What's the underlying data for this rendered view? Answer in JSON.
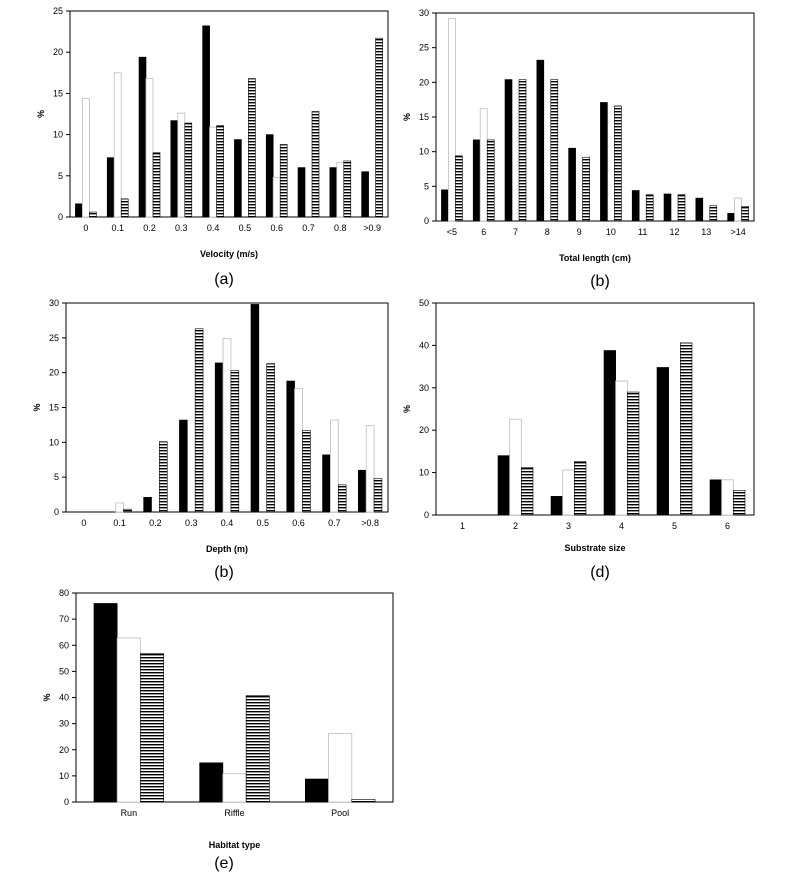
{
  "chart_data": [
    {
      "id": "a",
      "type": "bar",
      "panel_label": "(a)",
      "xlabel": "Velocity (m/s)",
      "ylabel": "%",
      "ylim": [
        0,
        25
      ],
      "yticks": [
        0,
        5,
        10,
        15,
        20,
        25
      ],
      "categories": [
        "0",
        "0.1",
        "0.2",
        "0.3",
        "0.4",
        "0.5",
        "0.6",
        "0.7",
        "0.8",
        ">0.9"
      ],
      "series": [
        {
          "name": "solid",
          "values": [
            1.6,
            7.2,
            19.4,
            11.7,
            23.2,
            9.4,
            10.0,
            6.0,
            6.0,
            5.5
          ]
        },
        {
          "name": "open",
          "values": [
            14.4,
            17.5,
            16.8,
            12.6,
            10.9,
            0.0,
            4.8,
            0.0,
            6.6,
            0.0
          ]
        },
        {
          "name": "striped",
          "values": [
            0.6,
            2.2,
            7.8,
            11.4,
            11.1,
            16.8,
            8.8,
            12.8,
            6.8,
            21.7
          ]
        }
      ]
    },
    {
      "id": "b1",
      "type": "bar",
      "panel_label": "(b)",
      "xlabel": "Total length (cm)",
      "ylabel": "%",
      "ylim": [
        0,
        30
      ],
      "yticks": [
        0,
        5,
        10,
        15,
        20,
        25,
        30
      ],
      "categories": [
        "<5",
        "6",
        "7",
        "8",
        "9",
        "10",
        "11",
        "12",
        "13",
        ">14"
      ],
      "series": [
        {
          "name": "solid",
          "values": [
            4.5,
            11.7,
            20.4,
            23.2,
            10.5,
            17.1,
            4.4,
            3.9,
            3.3,
            1.1
          ]
        },
        {
          "name": "open",
          "values": [
            29.2,
            16.2,
            0.0,
            0.0,
            0.0,
            0.0,
            0.0,
            0.0,
            0.0,
            3.3
          ]
        },
        {
          "name": "striped",
          "values": [
            9.4,
            11.7,
            20.4,
            20.4,
            9.2,
            16.6,
            3.8,
            3.8,
            2.2,
            2.1
          ]
        }
      ]
    },
    {
      "id": "b2",
      "type": "bar",
      "panel_label": "(b)",
      "xlabel": "Depth (m)",
      "ylabel": "%",
      "ylim": [
        0,
        30
      ],
      "yticks": [
        0,
        5,
        10,
        15,
        20,
        25,
        30
      ],
      "categories": [
        "0",
        "0.1",
        "0.2",
        "0.3",
        "0.4",
        "0.5",
        "0.6",
        "0.7",
        ">0.8"
      ],
      "series": [
        {
          "name": "solid",
          "values": [
            0.0,
            0.0,
            2.1,
            13.2,
            21.4,
            29.8,
            18.8,
            8.2,
            6.0
          ]
        },
        {
          "name": "open",
          "values": [
            0.0,
            1.3,
            0.0,
            0.0,
            24.9,
            0.0,
            17.7,
            13.2,
            12.4
          ]
        },
        {
          "name": "striped",
          "values": [
            0.0,
            0.4,
            10.1,
            26.3,
            20.3,
            21.3,
            11.7,
            3.9,
            4.8
          ]
        }
      ]
    },
    {
      "id": "d",
      "type": "bar",
      "panel_label": "(d)",
      "xlabel": "Substrate size",
      "ylabel": "%",
      "ylim": [
        0,
        50
      ],
      "yticks": [
        0,
        10,
        20,
        30,
        40,
        50
      ],
      "categories": [
        "1",
        "2",
        "3",
        "4",
        "5",
        "6"
      ],
      "series": [
        {
          "name": "solid",
          "values": [
            0.0,
            14.0,
            4.4,
            38.8,
            34.8,
            8.3
          ]
        },
        {
          "name": "open",
          "values": [
            0.0,
            22.6,
            10.6,
            31.6,
            0.0,
            8.3
          ]
        },
        {
          "name": "striped",
          "values": [
            0.0,
            11.2,
            12.6,
            29.0,
            40.6,
            5.8
          ]
        }
      ]
    },
    {
      "id": "e",
      "type": "bar",
      "panel_label": "(e)",
      "xlabel": "Habitat type",
      "ylabel": "%",
      "ylim": [
        0,
        80
      ],
      "yticks": [
        0,
        10,
        20,
        30,
        40,
        50,
        60,
        70,
        80
      ],
      "categories": [
        "Run",
        "Riffle",
        "Pool"
      ],
      "series": [
        {
          "name": "solid",
          "values": [
            76.0,
            15.0,
            8.8
          ]
        },
        {
          "name": "open",
          "values": [
            62.8,
            10.8,
            26.2
          ]
        },
        {
          "name": "striped",
          "values": [
            56.8,
            40.7,
            1.0
          ]
        }
      ]
    }
  ]
}
